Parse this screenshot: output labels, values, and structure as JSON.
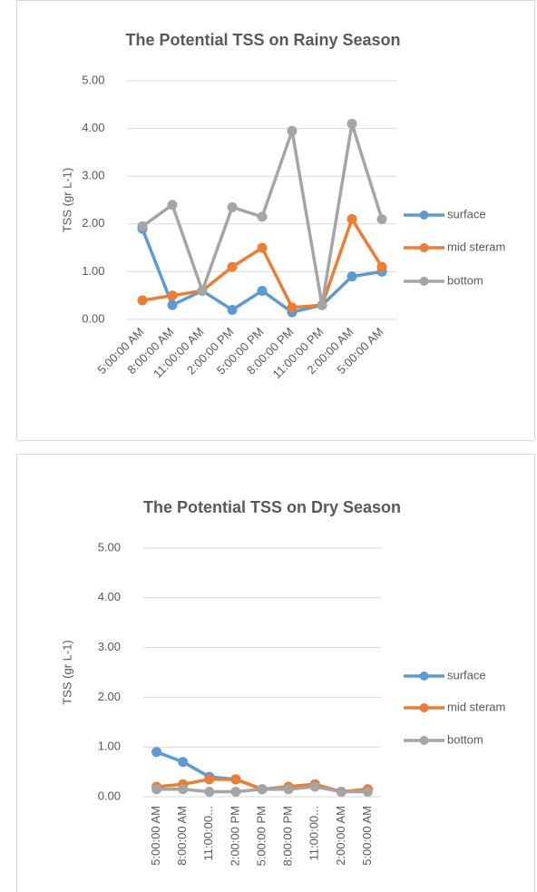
{
  "chart_data": [
    {
      "type": "line",
      "title": "The Potential TSS on Rainy Season",
      "y_label": "TSS (gr L-1)",
      "categories": [
        "5:00:00 AM",
        "8:00:00 AM",
        "11:00:00 AM",
        "2:00:00 PM",
        "5:00:00 PM",
        "8:00:00 PM",
        "11:00:00 PM",
        "2:00:00 AM",
        "5:00:00 AM"
      ],
      "series": [
        {
          "name": "surface",
          "color": "#5b9bd5",
          "values": [
            1.9,
            0.3,
            0.6,
            0.2,
            0.6,
            0.15,
            0.3,
            0.9,
            1.0
          ]
        },
        {
          "name": "mid steram",
          "color": "#ed7d31",
          "values": [
            0.4,
            0.5,
            0.6,
            1.1,
            1.5,
            0.25,
            0.3,
            2.1,
            1.1
          ]
        },
        {
          "name": "bottom",
          "color": "#a5a5a5",
          "values": [
            1.95,
            2.4,
            0.6,
            2.35,
            2.15,
            3.95,
            0.3,
            4.1,
            2.1
          ]
        }
      ],
      "ylim": [
        0,
        5
      ],
      "yticks": [
        {
          "value": 0,
          "label": "0.00"
        },
        {
          "value": 1,
          "label": "1.00"
        },
        {
          "value": 2,
          "label": "2.00"
        },
        {
          "value": 3,
          "label": "3.00"
        },
        {
          "value": 4,
          "label": "4.00"
        },
        {
          "value": 5,
          "label": "5.00"
        }
      ],
      "grid": true,
      "legend": "right"
    },
    {
      "type": "line",
      "title": "The Potential TSS on Dry Season",
      "y_label": "TSS (gr L-1)",
      "categories": [
        "5:00:00 AM",
        "8:00:00 AM",
        "11:00:00...",
        "2:00:00 PM",
        "5:00:00 PM",
        "8:00:00 PM",
        "11:00:00...",
        "2:00:00 AM",
        "5:00:00 AM"
      ],
      "series": [
        {
          "name": "surface",
          "color": "#5b9bd5",
          "values": [
            0.9,
            0.7,
            0.4,
            0.35,
            0.15,
            0.2,
            0.25,
            0.1,
            0.15
          ]
        },
        {
          "name": "mid steram",
          "color": "#ed7d31",
          "values": [
            0.2,
            0.25,
            0.35,
            0.35,
            0.15,
            0.2,
            0.25,
            0.1,
            0.15
          ]
        },
        {
          "name": "bottom",
          "color": "#a5a5a5",
          "values": [
            0.15,
            0.15,
            0.1,
            0.1,
            0.15,
            0.15,
            0.2,
            0.1,
            0.1
          ]
        }
      ],
      "ylim": [
        0,
        5
      ],
      "yticks": [
        {
          "value": 0,
          "label": "0.00"
        },
        {
          "value": 1,
          "label": "1.00"
        },
        {
          "value": 2,
          "label": "2.00"
        },
        {
          "value": 3,
          "label": "3.00"
        },
        {
          "value": 4,
          "label": "4.00"
        },
        {
          "value": 5,
          "label": "5.00"
        }
      ],
      "grid": true,
      "legend": "right"
    }
  ]
}
